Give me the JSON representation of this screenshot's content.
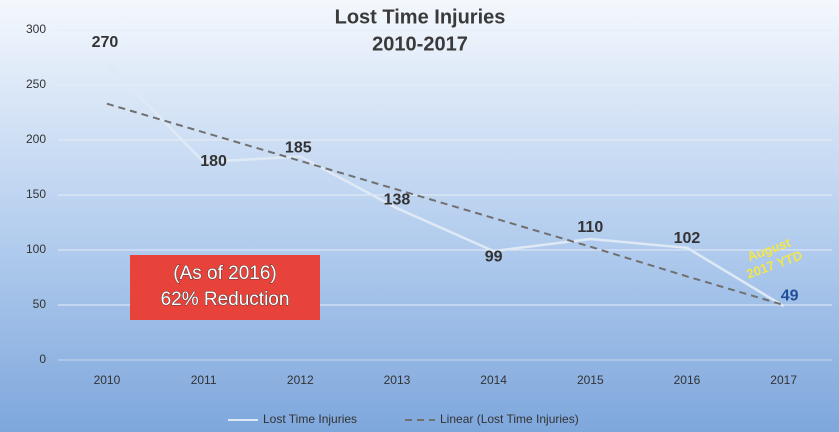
{
  "chart_data": {
    "type": "line",
    "title": [
      "Lost Time Injuries",
      "2010-2017"
    ],
    "categories": [
      "2010",
      "2011",
      "2012",
      "2013",
      "2014",
      "2015",
      "2016",
      "2017"
    ],
    "series": [
      {
        "name": "Lost Time Injuries",
        "color": "#dfe9f6",
        "values": [
          270,
          180,
          185,
          138,
          99,
          110,
          102,
          49
        ]
      },
      {
        "name": "Linear (Lost Time Injuries)",
        "color": "#707070",
        "dashed": true,
        "values": [
          233,
          207,
          181,
          155,
          129,
          103,
          76,
          50
        ]
      }
    ],
    "ylim": [
      0,
      300
    ],
    "yticks": [
      0,
      50,
      100,
      150,
      200,
      250,
      300
    ],
    "grid": true,
    "legend": "bottom",
    "callout": [
      "(As of 2016)",
      "62% Reduction"
    ],
    "note": [
      "August",
      "2017 YTD"
    ]
  }
}
